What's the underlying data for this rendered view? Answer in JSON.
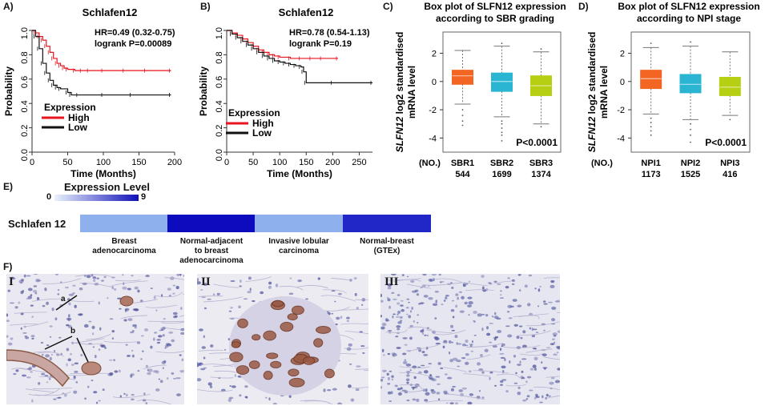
{
  "panel_labels": {
    "a": "A)",
    "b": "B)",
    "c": "C)",
    "d": "D)",
    "e": "E)",
    "f": "F)"
  },
  "colors": {
    "high": "#e8141f",
    "low": "#111111",
    "sbr1": "#f26522",
    "sbr2": "#2ab5d3",
    "sbr3": "#b7cf12",
    "heat_low": "#a8d2f7",
    "heat_high": "#0c0cbe"
  },
  "chart_data": [
    {
      "type": "line",
      "id": "A",
      "title": "Schlafen12",
      "xlabel": "Time (Months)",
      "ylabel": "Probability",
      "xlim": [
        0,
        200
      ],
      "ylim": [
        0,
        1
      ],
      "xticks": [
        "0",
        "50",
        "100",
        "150",
        "200"
      ],
      "yticks": [
        "0.0",
        "0.2",
        "0.4",
        "0.6",
        "0.8",
        "1.0"
      ],
      "annotation": [
        "HR=0.49 (0.32-0.75)",
        "logrank P=0.00089"
      ],
      "legend_title": "Expression",
      "series": [
        {
          "name": "High",
          "color": "#e8141f",
          "x": [
            0,
            5,
            10,
            15,
            20,
            25,
            30,
            35,
            40,
            45,
            50,
            60,
            70,
            80,
            100,
            130,
            160,
            195
          ],
          "y": [
            1.0,
            0.98,
            0.95,
            0.92,
            0.87,
            0.82,
            0.77,
            0.73,
            0.71,
            0.69,
            0.68,
            0.67,
            0.67,
            0.67,
            0.67,
            0.67,
            0.67,
            0.67
          ]
        },
        {
          "name": "Low",
          "color": "#111111",
          "x": [
            0,
            5,
            10,
            15,
            20,
            25,
            30,
            35,
            40,
            50,
            55,
            65,
            100,
            140,
            195
          ],
          "y": [
            1.0,
            0.95,
            0.85,
            0.73,
            0.65,
            0.59,
            0.55,
            0.53,
            0.52,
            0.49,
            0.47,
            0.47,
            0.47,
            0.47,
            0.47
          ]
        }
      ]
    },
    {
      "type": "line",
      "id": "B",
      "title": "Schlafen12",
      "xlabel": "Time (Months)",
      "ylabel": "Probability",
      "xlim": [
        0,
        275
      ],
      "ylim": [
        0,
        1
      ],
      "xticks": [
        "0",
        "50",
        "100",
        "150",
        "200",
        "250"
      ],
      "yticks": [
        "0.0",
        "0.2",
        "0.4",
        "0.6",
        "0.8",
        "1.0"
      ],
      "annotation": [
        "HR=0.78 (0.54-1.13)",
        "logrank P=0.19"
      ],
      "legend_title": "Expression",
      "series": [
        {
          "name": "High",
          "color": "#e8141f",
          "x": [
            0,
            10,
            20,
            30,
            40,
            50,
            60,
            70,
            80,
            90,
            100,
            120,
            140,
            160,
            180,
            210
          ],
          "y": [
            1.0,
            0.98,
            0.96,
            0.93,
            0.9,
            0.87,
            0.84,
            0.82,
            0.8,
            0.79,
            0.78,
            0.77,
            0.77,
            0.77,
            0.77,
            0.77
          ]
        },
        {
          "name": "Low",
          "color": "#111111",
          "x": [
            0,
            10,
            20,
            30,
            40,
            50,
            60,
            70,
            80,
            90,
            100,
            110,
            120,
            130,
            140,
            145,
            150,
            200,
            275
          ],
          "y": [
            1.0,
            0.97,
            0.94,
            0.91,
            0.88,
            0.85,
            0.82,
            0.79,
            0.77,
            0.75,
            0.74,
            0.73,
            0.72,
            0.71,
            0.7,
            0.66,
            0.57,
            0.57,
            0.57
          ]
        }
      ]
    },
    {
      "type": "box",
      "id": "C",
      "title": [
        "Box plot of SLFN12 expression",
        "according to SBR grading"
      ],
      "ylabel": [
        "SLFN12 log2 standardised",
        "mRNA level"
      ],
      "ylim": [
        -5,
        3.5
      ],
      "yticks": [
        "2",
        "0",
        "-2",
        "-4"
      ],
      "categories": [
        "SBR1",
        "SBR2",
        "SBR3"
      ],
      "counts": [
        "544",
        "1699",
        "1374"
      ],
      "count_label": "(NO.)",
      "pvalue": "P<0.0001",
      "boxes": [
        {
          "min": -1.6,
          "q1": -0.2,
          "median": 0.4,
          "q3": 0.8,
          "max": 2.2,
          "color": "#f26522",
          "outliers": [
            -2.0,
            -2.4,
            -2.8,
            -3.1
          ]
        },
        {
          "min": -2.5,
          "q1": -0.7,
          "median": 0.0,
          "q3": 0.6,
          "max": 2.5,
          "color": "#2ab5d3",
          "outliers": [
            -2.8,
            -3.0,
            -3.3,
            -3.6,
            -3.8,
            -4.2,
            2.7
          ]
        },
        {
          "min": -3.0,
          "q1": -1.0,
          "median": -0.3,
          "q3": 0.4,
          "max": 2.1,
          "color": "#b7cf12",
          "outliers": [
            -3.2,
            2.3
          ]
        }
      ]
    },
    {
      "type": "box",
      "id": "D",
      "title": [
        "Box plot of SLFN12 expression",
        "according to NPI stage"
      ],
      "ylabel": [
        "SLFN12 log2 standardised",
        "mRNA level"
      ],
      "ylim": [
        -5,
        3.5
      ],
      "yticks": [
        "2",
        "0",
        "-2",
        "-4"
      ],
      "categories": [
        "NPI1",
        "NPI2",
        "NPI3"
      ],
      "counts": [
        "1173",
        "1525",
        "416"
      ],
      "count_label": "(NO.)",
      "pvalue": "P<0.0001",
      "boxes": [
        {
          "min": -2.3,
          "q1": -0.5,
          "median": 0.2,
          "q3": 0.8,
          "max": 2.4,
          "color": "#f26522",
          "outliers": [
            -2.6,
            -2.9,
            -3.2,
            -3.5,
            -3.8,
            2.7
          ]
        },
        {
          "min": -2.7,
          "q1": -0.8,
          "median": -0.2,
          "q3": 0.5,
          "max": 2.5,
          "color": "#2ab5d3",
          "outliers": [
            -3.0,
            -3.4,
            -3.8,
            -4.3,
            2.8
          ]
        },
        {
          "min": -2.4,
          "q1": -1.0,
          "median": -0.4,
          "q3": 0.3,
          "max": 2.1,
          "color": "#b7cf12",
          "outliers": [
            -2.7
          ]
        }
      ]
    },
    {
      "type": "heatmap",
      "id": "E",
      "scale_title": "Expression Level",
      "scale_min": "0",
      "scale_max": "9",
      "row_label": "Schlafen 12",
      "columns": [
        {
          "label": [
            "Breast",
            "adenocarcinoma"
          ],
          "value": 1.5
        },
        {
          "label": [
            "Normal-adjacent",
            "to breast",
            "adenocarcinoma"
          ],
          "value": 9
        },
        {
          "label": [
            "Invasive lobular",
            "carcinoma"
          ],
          "value": 1.5
        },
        {
          "label": [
            "Normal-breast",
            "(GTEx)"
          ],
          "value": 7.8
        }
      ]
    }
  ],
  "micrographs": {
    "i_label": "I",
    "ii_label": "II",
    "iii_label": "III",
    "arrow_a": "a",
    "arrow_b": "b"
  }
}
